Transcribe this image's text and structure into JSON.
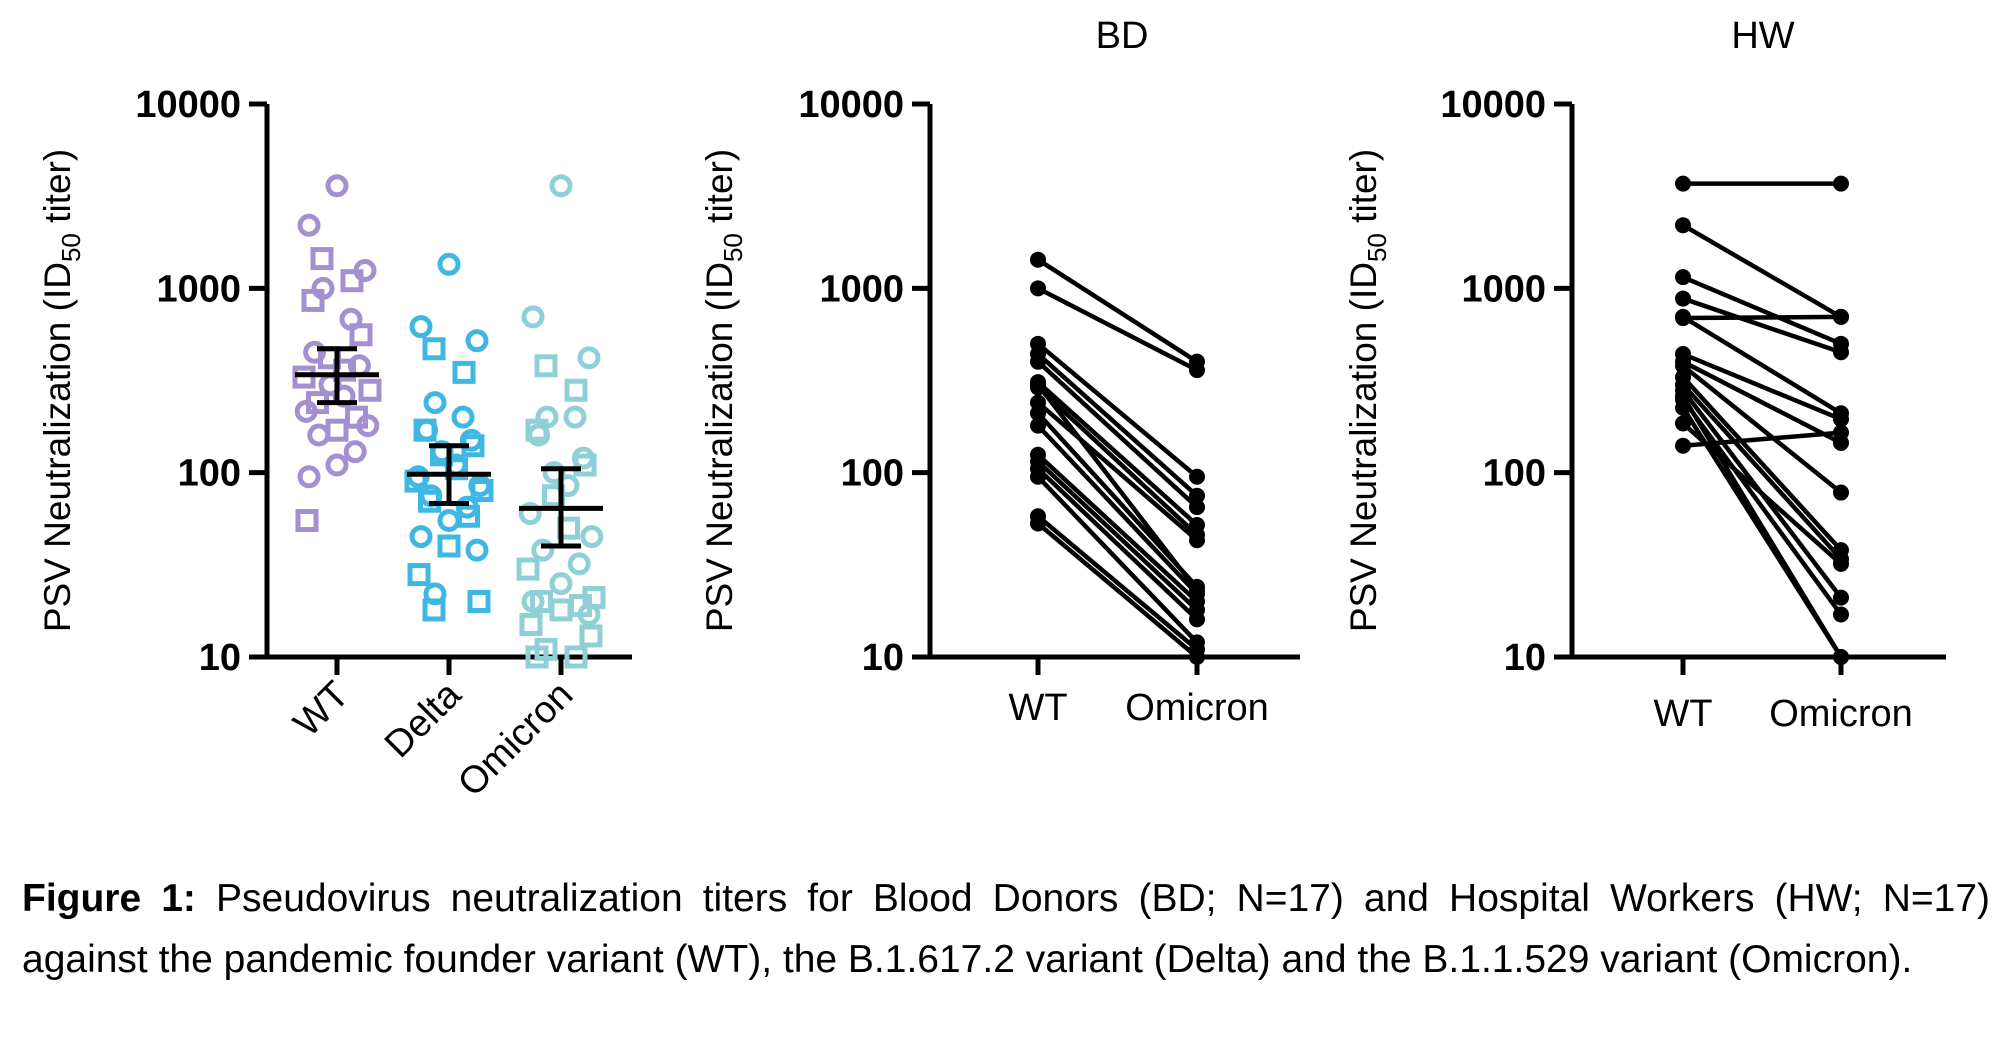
{
  "chart_data": [
    {
      "type": "scatter",
      "title": "",
      "xlabel": "",
      "ylabel": "PSV Neutralization (ID",
      "ylabel_sub": "50",
      "ylabel_end": " titer)",
      "yscale": "log",
      "ylim": [
        10,
        10000
      ],
      "yticks": [
        10,
        100,
        1000,
        10000
      ],
      "ytick_labels": [
        "10",
        "100",
        "1000",
        "10000"
      ],
      "categories": [
        "WT",
        "Delta",
        "Omicron"
      ],
      "colors": [
        "#a48fd0",
        "#3fb7e3",
        "#8fcfd6"
      ],
      "marker_types": [
        "circle",
        "square"
      ],
      "series": [
        {
          "category": "WT",
          "circle_values": [
            3600,
            2200,
            1250,
            1000,
            680,
            450,
            380,
            300,
            260,
            215,
            180,
            160,
            130,
            110,
            95
          ],
          "square_values": [
            1450,
            1100,
            860,
            560,
            420,
            360,
            330,
            280,
            240,
            200,
            170,
            55
          ],
          "summary": {
            "center": 340,
            "lower": 240,
            "upper": 470
          }
        },
        {
          "category": "Delta",
          "circle_values": [
            1350,
            620,
            520,
            240,
            200,
            170,
            150,
            130,
            110,
            95,
            85,
            75,
            65,
            55,
            45,
            38,
            22
          ],
          "square_values": [
            470,
            350,
            170,
            140,
            125,
            105,
            90,
            80,
            70,
            58,
            40,
            28,
            20,
            18
          ],
          "summary": {
            "center": 98,
            "lower": 68,
            "upper": 140
          }
        },
        {
          "category": "Omicron",
          "circle_values": [
            3600,
            700,
            420,
            200,
            200,
            160,
            120,
            100,
            85,
            60,
            45,
            38,
            32,
            25,
            20,
            17
          ],
          "square_values": [
            380,
            280,
            170,
            110,
            75,
            50,
            30,
            21,
            20,
            19,
            18,
            15,
            13,
            11,
            10,
            10
          ],
          "summary": {
            "center": 64,
            "lower": 40,
            "upper": 105
          }
        }
      ]
    },
    {
      "type": "line",
      "title": "BD",
      "ylabel": "PSV Neutralization (ID",
      "ylabel_sub": "50",
      "ylabel_end": " titer)",
      "yscale": "log",
      "ylim": [
        10,
        10000
      ],
      "yticks": [
        10,
        100,
        1000,
        10000
      ],
      "ytick_labels": [
        "10",
        "100",
        "1000",
        "10000"
      ],
      "categories": [
        "WT",
        "Omicron"
      ],
      "pairs": [
        [
          1430,
          400
        ],
        [
          1000,
          360
        ],
        [
          500,
          95
        ],
        [
          440,
          75
        ],
        [
          400,
          65
        ],
        [
          310,
          52
        ],
        [
          290,
          46
        ],
        [
          240,
          43
        ],
        [
          210,
          24
        ],
        [
          180,
          22
        ],
        [
          125,
          20
        ],
        [
          115,
          18
        ],
        [
          105,
          16
        ],
        [
          95,
          12
        ],
        [
          58,
          11
        ],
        [
          53,
          10
        ],
        [
          300,
          23
        ]
      ]
    },
    {
      "type": "line",
      "title": "HW",
      "ylabel": "PSV Neutralization (ID",
      "ylabel_sub": "50",
      "ylabel_end": " titer)",
      "yscale": "log",
      "ylim": [
        10,
        10000
      ],
      "yticks": [
        10,
        100,
        1000,
        10000
      ],
      "ytick_labels": [
        "10",
        "100",
        "1000",
        "10000"
      ],
      "categories": [
        "WT",
        "Omicron"
      ],
      "pairs": [
        [
          3700,
          3700
        ],
        [
          2200,
          700
        ],
        [
          1150,
          500
        ],
        [
          880,
          450
        ],
        [
          700,
          210
        ],
        [
          690,
          700
        ],
        [
          440,
          195
        ],
        [
          400,
          145
        ],
        [
          380,
          78
        ],
        [
          330,
          38
        ],
        [
          300,
          34
        ],
        [
          280,
          21
        ],
        [
          250,
          17
        ],
        [
          225,
          10
        ],
        [
          185,
          32
        ],
        [
          140,
          165
        ],
        [
          260,
          10
        ]
      ]
    }
  ],
  "caption": {
    "label": "Figure 1:",
    "text": " Pseudovirus neutralization titers for Blood Donors (BD; N=17) and Hospital Workers (HW; N=17) against the pandemic founder variant (WT), the B.1.617.2 variant (Delta) and the B.1.1.529 variant (Omicron)."
  }
}
